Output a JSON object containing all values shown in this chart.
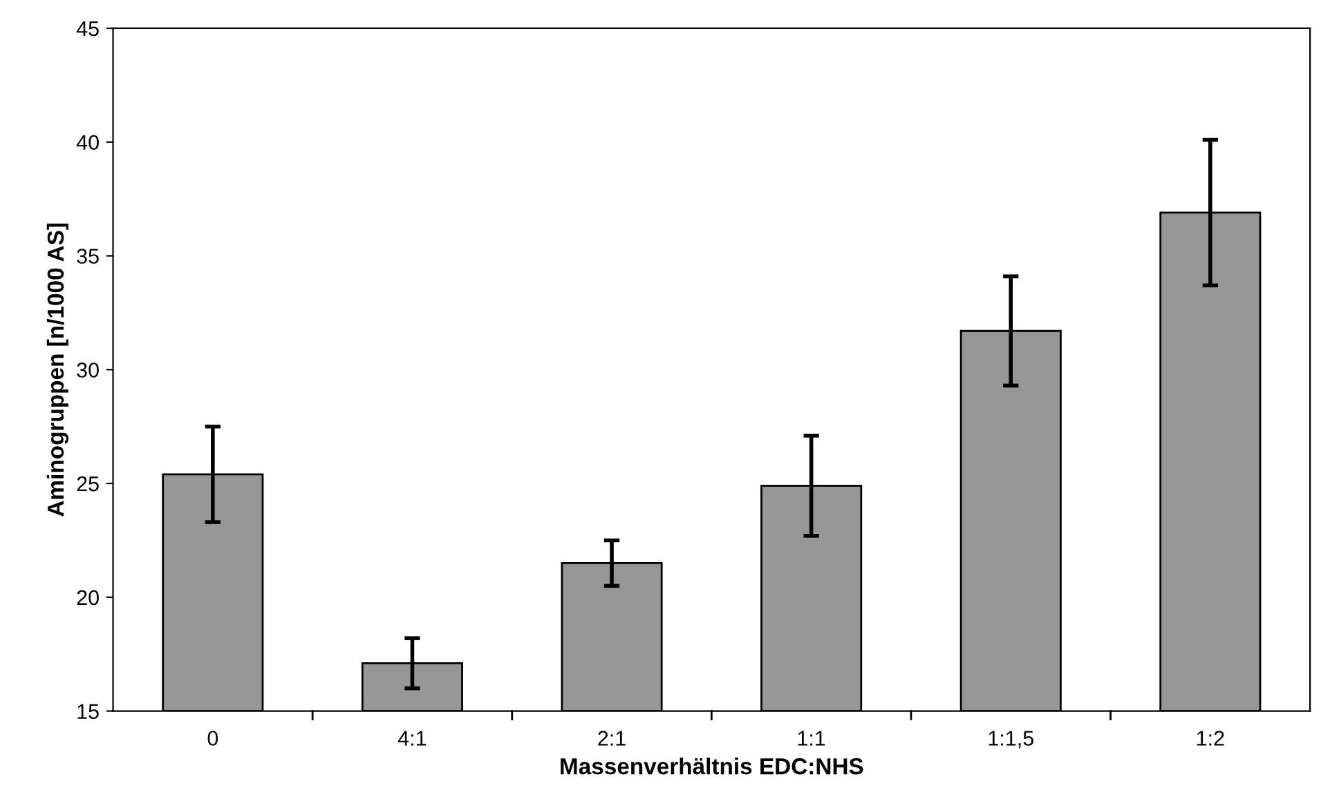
{
  "chart_data": {
    "type": "bar",
    "xlabel": "Massenverhältnis EDC:NHS",
    "ylabel": "Aminogruppen [n/1000 AS]",
    "categories": [
      "0",
      "4:1",
      "2:1",
      "1:1",
      "1:1,5",
      "1:2"
    ],
    "values": [
      25.4,
      17.1,
      21.5,
      24.9,
      31.7,
      36.9
    ],
    "errors": [
      2.1,
      1.1,
      1.0,
      2.2,
      2.4,
      3.2
    ],
    "color": "#969696",
    "ylim": [
      15,
      45
    ],
    "yticks": [
      15,
      20,
      25,
      30,
      35,
      40,
      45
    ],
    "grid": false,
    "legend": false
  }
}
